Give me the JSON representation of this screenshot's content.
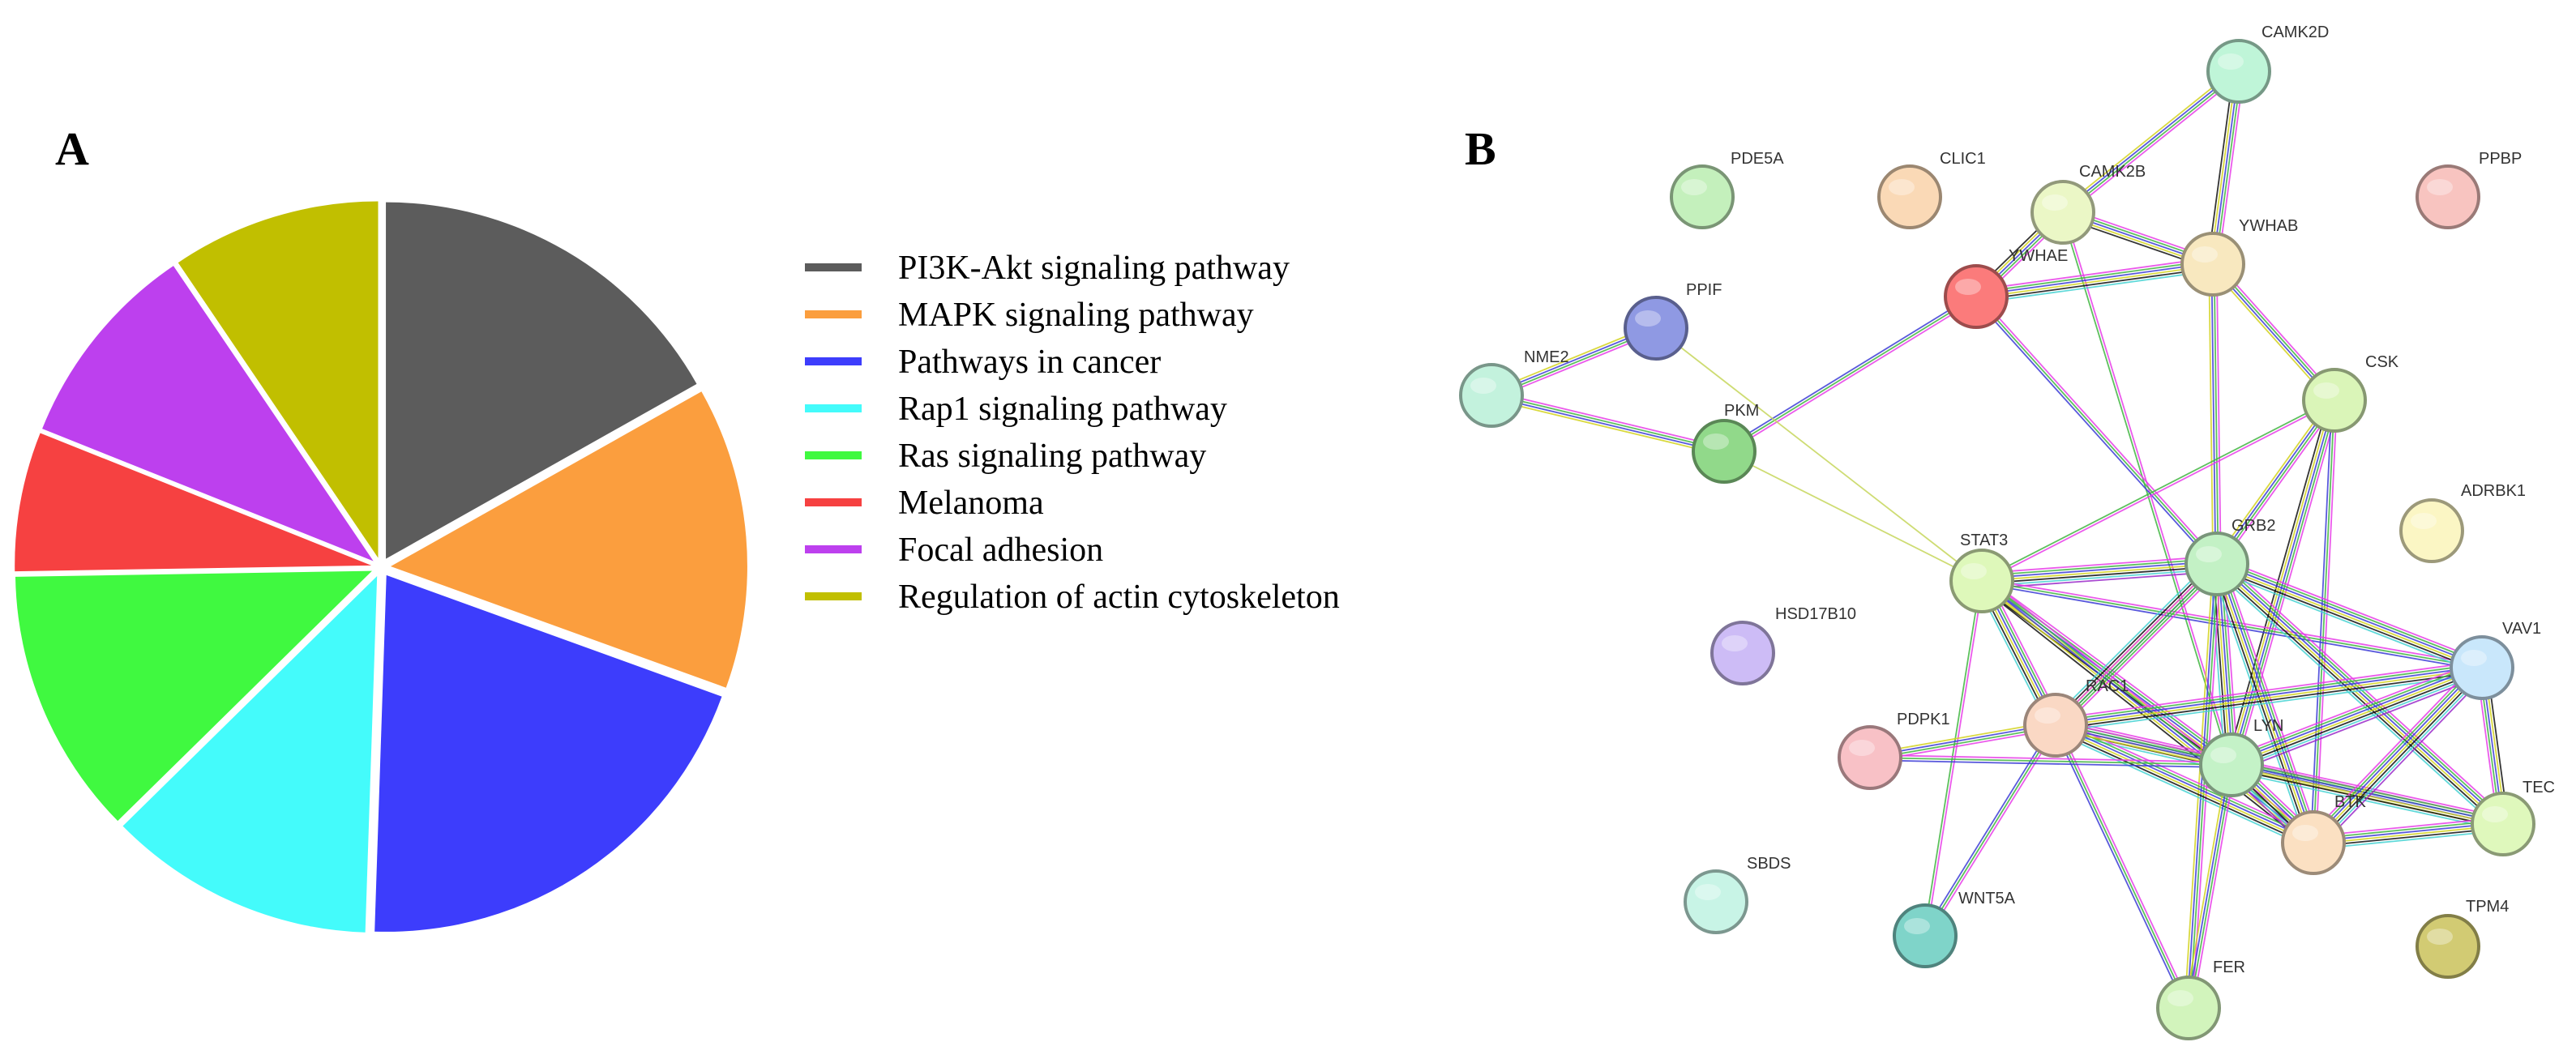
{
  "panels": {
    "a": {
      "letter": "A",
      "chart_data": {
        "type": "pie",
        "slices": [
          {
            "label": "PI3K-Akt signaling pathway",
            "value": 16,
            "color": "#5c5c5c"
          },
          {
            "label": "MAPK signaling pathway",
            "value": 13,
            "color": "#fb9e3e"
          },
          {
            "label": "Pathways in cancer",
            "value": 19,
            "color": "#3d3dfc"
          },
          {
            "label": "Rap1 signaling pathway",
            "value": 11.5,
            "color": "#44fbfb"
          },
          {
            "label": "Ras signaling pathway",
            "value": 11.5,
            "color": "#40f940"
          },
          {
            "label": "Melanoma",
            "value": 6,
            "color": "#f64141"
          },
          {
            "label": "Focal adhesion",
            "value": 9,
            "color": "#bd40ee"
          },
          {
            "label": "Regulation of actin cytoskeleton",
            "value": 9,
            "color": "#c1bf00"
          }
        ],
        "legend_position": "right"
      }
    },
    "b": {
      "letter": "B",
      "nodes": [
        {
          "id": "CAMK2D",
          "color": "#bff5d8"
        },
        {
          "id": "PDE5A",
          "color": "#c4f0bc"
        },
        {
          "id": "CLIC1",
          "color": "#fad9b6"
        },
        {
          "id": "CAMK2B",
          "color": "#ebf7c6"
        },
        {
          "id": "PPBP",
          "color": "#f8c4c0"
        },
        {
          "id": "YWHAE",
          "color": "#fb7b7b"
        },
        {
          "id": "YWHAB",
          "color": "#f8e8bf"
        },
        {
          "id": "PPIF",
          "color": "#8f99e3"
        },
        {
          "id": "NME2",
          "color": "#c3f2dd"
        },
        {
          "id": "PKM",
          "color": "#91d98a"
        },
        {
          "id": "CSK",
          "color": "#daf5b8"
        },
        {
          "id": "ADRBK1",
          "color": "#fbf6c4"
        },
        {
          "id": "STAT3",
          "color": "#def8ba"
        },
        {
          "id": "GRB2",
          "color": "#c3f1c5"
        },
        {
          "id": "HSD17B10",
          "color": "#cdbcf6"
        },
        {
          "id": "VAV1",
          "color": "#c9e7fb"
        },
        {
          "id": "PDPK1",
          "color": "#f8c1c6"
        },
        {
          "id": "RAC1",
          "color": "#fad8c4"
        },
        {
          "id": "LYN",
          "color": "#c4f2c7"
        },
        {
          "id": "TEC",
          "color": "#dff8bc"
        },
        {
          "id": "BTK",
          "color": "#fbe0c2"
        },
        {
          "id": "SBDS",
          "color": "#c8f4e6"
        },
        {
          "id": "WNT5A",
          "color": "#7fd4c9"
        },
        {
          "id": "TPM4",
          "color": "#d2cb73"
        },
        {
          "id": "FER",
          "color": "#d2f4bc"
        }
      ],
      "edges": [
        [
          "CAMK2D",
          "CAMK2B",
          4
        ],
        [
          "CAMK2D",
          "YWHAB",
          5
        ],
        [
          "CAMK2B",
          "YWHAB",
          5
        ],
        [
          "CAMK2B",
          "YWHAE",
          5
        ],
        [
          "CAMK2B",
          "LYN",
          2
        ],
        [
          "YWHAE",
          "YWHAB",
          6
        ],
        [
          "YWHAE",
          "PKM",
          3
        ],
        [
          "YWHAE",
          "GRB2",
          3
        ],
        [
          "YWHAB",
          "CSK",
          4
        ],
        [
          "YWHAB",
          "GRB2",
          4
        ],
        [
          "PPIF",
          "NME2",
          4
        ],
        [
          "PPIF",
          "STAT3",
          1
        ],
        [
          "NME2",
          "PKM",
          4
        ],
        [
          "PKM",
          "STAT3",
          1
        ],
        [
          "CSK",
          "STAT3",
          2
        ],
        [
          "CSK",
          "GRB2",
          4
        ],
        [
          "CSK",
          "LYN",
          5
        ],
        [
          "CSK",
          "BTK",
          3
        ],
        [
          "STAT3",
          "GRB2",
          7
        ],
        [
          "STAT3",
          "RAC1",
          6
        ],
        [
          "STAT3",
          "LYN",
          5
        ],
        [
          "STAT3",
          "BTK",
          5
        ],
        [
          "STAT3",
          "WNT5A",
          2
        ],
        [
          "STAT3",
          "VAV1",
          3
        ],
        [
          "GRB2",
          "RAC1",
          6
        ],
        [
          "GRB2",
          "LYN",
          6
        ],
        [
          "GRB2",
          "BTK",
          6
        ],
        [
          "GRB2",
          "TEC",
          6
        ],
        [
          "GRB2",
          "VAV1",
          6
        ],
        [
          "GRB2",
          "FER",
          4
        ],
        [
          "RAC1",
          "PDPK1",
          4
        ],
        [
          "RAC1",
          "LYN",
          6
        ],
        [
          "RAC1",
          "BTK",
          6
        ],
        [
          "RAC1",
          "VAV1",
          6
        ],
        [
          "RAC1",
          "TEC",
          4
        ],
        [
          "RAC1",
          "WNT5A",
          3
        ],
        [
          "RAC1",
          "FER",
          3
        ],
        [
          "PDPK1",
          "LYN",
          3
        ],
        [
          "LYN",
          "BTK",
          7
        ],
        [
          "LYN",
          "TEC",
          6
        ],
        [
          "LYN",
          "VAV1",
          7
        ],
        [
          "LYN",
          "FER",
          4
        ],
        [
          "BTK",
          "TEC",
          6
        ],
        [
          "BTK",
          "VAV1",
          7
        ],
        [
          "TEC",
          "VAV1",
          5
        ],
        [
          "RAC1",
          "GRB2",
          2
        ]
      ]
    }
  }
}
